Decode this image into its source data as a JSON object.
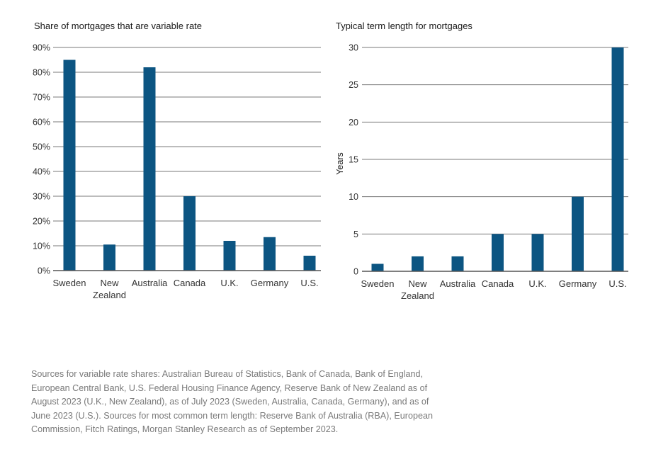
{
  "colors": {
    "bar": "#0c5582",
    "grid": "#7a7a7a",
    "axis": "#555555"
  },
  "chart_data": [
    {
      "type": "bar",
      "title": "Share of mortgages that are variable rate",
      "categories": [
        "Sweden",
        "New Zealand",
        "Australia",
        "Canada",
        "U.K.",
        "Germany",
        "U.S."
      ],
      "category_lines": [
        [
          "Sweden"
        ],
        [
          "New",
          "Zealand"
        ],
        [
          "Australia"
        ],
        [
          "Canada"
        ],
        [
          "U.K."
        ],
        [
          "Germany"
        ],
        [
          "U.S."
        ]
      ],
      "values": [
        85,
        10.5,
        82,
        30,
        12,
        13.5,
        6
      ],
      "yticks": [
        0,
        10,
        20,
        30,
        40,
        50,
        60,
        70,
        80,
        90
      ],
      "ytick_labels": [
        "0%",
        "10%",
        "20%",
        "30%",
        "40%",
        "50%",
        "60%",
        "70%",
        "80%",
        "90%"
      ],
      "ylim": [
        0,
        90
      ],
      "xlabel": "",
      "ylabel": "",
      "grid": true,
      "unit": "%"
    },
    {
      "type": "bar",
      "title": "Typical term length for mortgages",
      "categories": [
        "Sweden",
        "New Zealand",
        "Australia",
        "Canada",
        "U.K.",
        "Germany",
        "U.S."
      ],
      "category_lines": [
        [
          "Sweden"
        ],
        [
          "New",
          "Zealand"
        ],
        [
          "Australia"
        ],
        [
          "Canada"
        ],
        [
          "U.K."
        ],
        [
          "Germany"
        ],
        [
          "U.S."
        ]
      ],
      "values": [
        1,
        2,
        2,
        5,
        5,
        10,
        30
      ],
      "yticks": [
        0,
        5,
        10,
        15,
        20,
        25,
        30
      ],
      "ytick_labels": [
        "0",
        "5",
        "10",
        "15",
        "20",
        "25",
        "30"
      ],
      "ylim": [
        0,
        30
      ],
      "xlabel": "",
      "ylabel": "Years",
      "grid": true
    }
  ],
  "source_note": "Sources for variable rate shares: Australian Bureau of Statistics, Bank of Canada, Bank of England, European Central Bank, U.S. Federal Housing Finance Agency, Reserve Bank of New Zealand as of August 2023 (U.K., New Zealand), as of July 2023 (Sweden, Australia, Canada, Germany), and as of June 2023 (U.S.). Sources for most common term length: Reserve Bank of Australia (RBA), European Commission, Fitch Ratings, Morgan Stanley Research as of September 2023."
}
